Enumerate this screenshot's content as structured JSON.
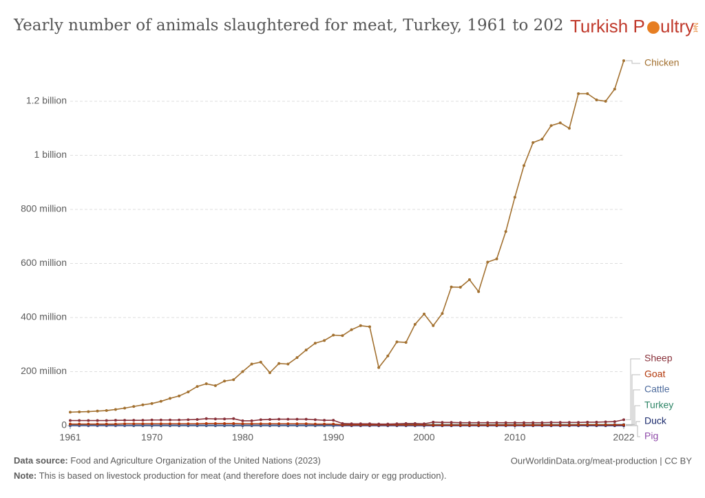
{
  "chart_data": {
    "type": "line",
    "title": "Yearly number of animals slaughtered for meat, Turkey, 1961 to 202",
    "logo": {
      "text1": "Turkish P",
      "text2": "ultry",
      "suffix": "Net"
    },
    "source_label": "Data source:",
    "source": "Food and Agriculture Organization of the United Nations (2023)",
    "credit": "OurWorldinData.org/meat-production | CC BY",
    "note_label": "Note:",
    "note": "This is based on livestock production for meat (and therefore does not include dairy or egg production).",
    "xlim": [
      1961,
      2022
    ],
    "xticks": [
      1961,
      1970,
      1980,
      1990,
      2000,
      2010,
      2022
    ],
    "ylim": [
      0,
      1400000000
    ],
    "yticks": [
      0,
      {
        "value": 200000000,
        "label": "200 million"
      },
      {
        "value": 400000000,
        "label": "400 million"
      },
      {
        "value": 600000000,
        "label": "600 million"
      },
      {
        "value": 800000000,
        "label": "800 million"
      },
      {
        "value": 1000000000,
        "label": "1 billion"
      },
      {
        "value": 1200000000,
        "label": "1.2 billion"
      }
    ],
    "grid": true,
    "x": [
      1961,
      1962,
      1963,
      1964,
      1965,
      1966,
      1967,
      1968,
      1969,
      1970,
      1971,
      1972,
      1973,
      1974,
      1975,
      1976,
      1977,
      1978,
      1979,
      1980,
      1981,
      1982,
      1983,
      1984,
      1985,
      1986,
      1987,
      1988,
      1989,
      1990,
      1991,
      1992,
      1993,
      1994,
      1995,
      1996,
      1997,
      1998,
      1999,
      2000,
      2001,
      2002,
      2003,
      2004,
      2005,
      2006,
      2007,
      2008,
      2009,
      2010,
      2011,
      2012,
      2013,
      2014,
      2015,
      2016,
      2017,
      2018,
      2019,
      2020,
      2021,
      2022
    ],
    "series": [
      {
        "name": "Chicken",
        "color": "#a2702f",
        "values": [
          50000000,
          51000000,
          52000000,
          54000000,
          56000000,
          60000000,
          65000000,
          71000000,
          77000000,
          82000000,
          90000000,
          101000000,
          110000000,
          125000000,
          145000000,
          155000000,
          148000000,
          165000000,
          170000000,
          200000000,
          228000000,
          235000000,
          196000000,
          230000000,
          228000000,
          252000000,
          280000000,
          305000000,
          315000000,
          335000000,
          333000000,
          355000000,
          370000000,
          366000000,
          215000000,
          258000000,
          310000000,
          308000000,
          375000000,
          413000000,
          370000000,
          415000000,
          513000000,
          512000000,
          540000000,
          496000000,
          605000000,
          617000000,
          718000000,
          845000000,
          962000000,
          1047000000,
          1060000000,
          1110000000,
          1120000000,
          1100000000,
          1228000000,
          1228000000,
          1205000000,
          1200000000,
          1245000000,
          1350000000
        ]
      },
      {
        "name": "Sheep",
        "color": "#883039",
        "values": [
          19000000,
          19000000,
          19000000,
          19000000,
          19000000,
          20000000,
          20000000,
          20000000,
          20000000,
          21000000,
          21000000,
          21000000,
          21000000,
          22000000,
          23000000,
          26000000,
          25000000,
          25000000,
          26000000,
          18000000,
          18000000,
          22000000,
          23000000,
          24000000,
          24000000,
          24000000,
          24000000,
          22000000,
          20000000,
          20000000,
          8000000,
          7000000,
          7000000,
          7000000,
          6000000,
          6000000,
          7000000,
          8000000,
          8000000,
          7000000,
          13000000,
          12000000,
          12000000,
          11000000,
          11000000,
          11000000,
          11000000,
          11000000,
          11000000,
          11000000,
          11000000,
          11000000,
          11000000,
          12000000,
          12000000,
          12000000,
          12000000,
          13000000,
          13000000,
          14000000,
          15000000,
          22000000
        ]
      },
      {
        "name": "Goat",
        "color": "#b13507",
        "values": [
          6000000,
          6000000,
          6000000,
          6000000,
          6000000,
          6000000,
          7000000,
          7000000,
          7000000,
          7000000,
          7000000,
          7000000,
          7000000,
          7000000,
          7000000,
          8000000,
          8000000,
          8000000,
          8000000,
          7000000,
          7000000,
          7000000,
          7000000,
          7000000,
          7000000,
          7000000,
          7000000,
          6000000,
          6000000,
          6000000,
          3000000,
          3000000,
          3000000,
          3000000,
          3000000,
          3000000,
          3000000,
          3000000,
          3000000,
          3000000,
          2000000,
          2000000,
          2000000,
          2000000,
          2000000,
          2000000,
          2000000,
          2000000,
          2000000,
          2000000,
          2000000,
          2000000,
          2000000,
          2000000,
          2000000,
          2000000,
          3000000,
          3000000,
          3000000,
          3000000,
          3000000,
          3000000
        ]
      },
      {
        "name": "Cattle",
        "color": "#4c6a9c",
        "values": [
          1000000,
          1000000,
          1000000,
          1000000,
          1000000,
          1000000,
          1000000,
          2000000,
          2000000,
          2000000,
          2000000,
          2000000,
          2000000,
          2000000,
          2000000,
          2000000,
          2000000,
          2000000,
          2000000,
          2000000,
          2000000,
          2000000,
          2000000,
          2000000,
          2000000,
          2000000,
          2000000,
          2000000,
          2000000,
          2000000,
          2000000,
          2000000,
          2000000,
          2000000,
          2000000,
          2000000,
          2000000,
          2000000,
          2000000,
          2000000,
          3000000,
          3000000,
          3000000,
          3000000,
          3000000,
          3000000,
          3000000,
          3000000,
          3000000,
          3000000,
          3000000,
          3000000,
          3000000,
          3000000,
          3000000,
          3000000,
          3000000,
          3000000,
          3000000,
          3000000,
          4000000,
          4000000
        ]
      },
      {
        "name": "Turkey",
        "color": "#2c8465",
        "values": [
          1500000,
          1500000,
          1500000,
          1500000,
          1500000,
          1500000,
          1500000,
          1500000,
          1500000,
          1500000,
          1500000,
          1500000,
          1500000,
          1500000,
          1500000,
          1500000,
          1500000,
          1500000,
          1500000,
          1500000,
          1500000,
          1500000,
          1500000,
          1500000,
          1500000,
          1500000,
          1500000,
          1500000,
          1500000,
          1500000,
          4000000,
          4000000,
          4000000,
          4000000,
          4000000,
          4000000,
          4000000,
          4000000,
          4000000,
          4000000,
          4000000,
          4000000,
          4000000,
          4000000,
          4000000,
          4000000,
          4000000,
          4000000,
          4000000,
          4000000,
          4000000,
          4000000,
          4000000,
          4000000,
          4000000,
          4000000,
          4000000,
          4000000,
          4000000,
          4000000,
          4000000,
          4000000
        ]
      },
      {
        "name": "Duck",
        "color": "#1a2a6c",
        "values": [
          300000,
          300000,
          300000,
          300000,
          300000,
          300000,
          300000,
          300000,
          300000,
          300000,
          300000,
          300000,
          300000,
          300000,
          300000,
          300000,
          300000,
          300000,
          300000,
          300000,
          300000,
          300000,
          300000,
          300000,
          300000,
          300000,
          300000,
          300000,
          300000,
          300000,
          300000,
          300000,
          300000,
          300000,
          300000,
          300000,
          300000,
          300000,
          300000,
          300000,
          300000,
          300000,
          300000,
          300000,
          300000,
          300000,
          300000,
          300000,
          300000,
          300000,
          300000,
          300000,
          300000,
          300000,
          300000,
          300000,
          300000,
          300000,
          300000,
          300000,
          300000,
          300000
        ]
      },
      {
        "name": "Pig",
        "color": "#8e49a8",
        "values": [
          10000,
          10000,
          10000,
          10000,
          10000,
          10000,
          10000,
          10000,
          10000,
          10000,
          10000,
          10000,
          10000,
          10000,
          10000,
          10000,
          10000,
          10000,
          10000,
          10000,
          10000,
          10000,
          10000,
          10000,
          10000,
          10000,
          10000,
          10000,
          10000,
          10000,
          10000,
          10000,
          10000,
          10000,
          10000,
          10000,
          10000,
          10000,
          10000,
          10000,
          10000,
          10000,
          10000,
          10000,
          10000,
          10000,
          10000,
          10000,
          10000,
          10000,
          10000,
          10000,
          10000,
          10000,
          10000,
          10000,
          10000,
          10000,
          10000,
          10000,
          10000,
          10000
        ]
      }
    ]
  }
}
